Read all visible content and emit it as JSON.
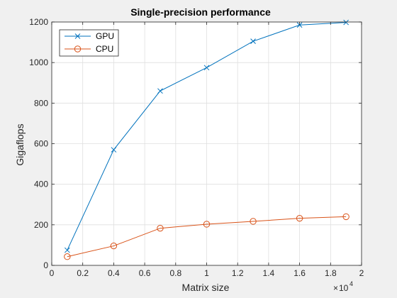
{
  "chart_data": {
    "type": "line",
    "title": "Single-precision performance",
    "xlabel": "Matrix size",
    "ylabel": "Gigaflops",
    "x_exponent_base": "10",
    "x_exponent_power": "4",
    "xlim": [
      0,
      2
    ],
    "ylim": [
      0,
      1200
    ],
    "x_ticks": [
      "0",
      "0.2",
      "0.4",
      "0.6",
      "0.8",
      "1",
      "1.2",
      "1.4",
      "1.6",
      "1.8",
      "2"
    ],
    "y_ticks": [
      "0",
      "200",
      "400",
      "600",
      "800",
      "1000",
      "1200"
    ],
    "grid": true,
    "legend_position": "top-left",
    "series": [
      {
        "name": "GPU",
        "marker": "x",
        "color": "#0072bd",
        "x": [
          0.1,
          0.4,
          0.7,
          1.0,
          1.3,
          1.6,
          1.9
        ],
        "y": [
          75,
          570,
          860,
          975,
          1105,
          1185,
          1198
        ]
      },
      {
        "name": "CPU",
        "marker": "o",
        "color": "#d95319",
        "x": [
          0.1,
          0.4,
          0.7,
          1.0,
          1.3,
          1.6,
          1.9
        ],
        "y": [
          43,
          96,
          183,
          203,
          217,
          232,
          240
        ]
      }
    ]
  }
}
